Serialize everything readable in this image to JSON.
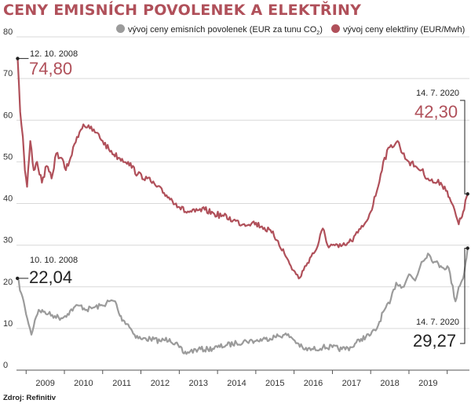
{
  "title": "CENY EMISNÍCH POVOLENEK A ELEKTŘINY",
  "source": "Zdroj: Refinitiv",
  "colors": {
    "emissions": "#9b9b9b",
    "electricity": "#b0505a",
    "title": "#b0505a"
  },
  "chart_data": {
    "type": "line",
    "title": "CENY EMISNÍCH POVOLENEK A ELEKTŘINY",
    "ylim": [
      0,
      80
    ],
    "yticks": [
      0,
      10,
      20,
      30,
      40,
      50,
      60,
      70,
      80
    ],
    "xlim": [
      "2008-10-01",
      "2020-07-31"
    ],
    "xticks": [
      "2009",
      "2010",
      "2011",
      "2012",
      "2013",
      "2014",
      "2015",
      "2016",
      "2017",
      "2018",
      "2019"
    ],
    "grid": true,
    "legend_position": "top",
    "series": [
      {
        "key": "emissions",
        "name": "vývoj ceny emisních povolenek (EUR za tunu CO₂)",
        "legend_main": "vývoj ceny emisních povolenek (EUR za tunu CO",
        "legend_sub": "2",
        "legend_end": ")",
        "color": "#9b9b9b",
        "x": [
          "2008-10-10",
          "2008-11-15",
          "2008-12-20",
          "2009-01-25",
          "2009-02-20",
          "2009-03-25",
          "2009-05-01",
          "2009-06-15",
          "2009-08-01",
          "2009-10-01",
          "2009-12-01",
          "2010-02-01",
          "2010-04-01",
          "2010-06-01",
          "2010-08-01",
          "2010-10-01",
          "2011-01-01",
          "2011-03-01",
          "2011-05-01",
          "2011-06-15",
          "2011-07-15",
          "2011-09-01",
          "2011-11-01",
          "2012-01-01",
          "2012-04-01",
          "2012-07-01",
          "2012-10-01",
          "2013-01-01",
          "2013-02-15",
          "2013-04-15",
          "2013-07-01",
          "2013-10-01",
          "2014-01-01",
          "2014-04-01",
          "2014-07-01",
          "2014-10-01",
          "2015-01-01",
          "2015-04-01",
          "2015-07-01",
          "2015-10-01",
          "2015-12-01",
          "2016-02-01",
          "2016-04-01",
          "2016-07-01",
          "2016-10-01",
          "2017-01-01",
          "2017-04-01",
          "2017-07-01",
          "2017-10-01",
          "2018-01-01",
          "2018-03-01",
          "2018-05-01",
          "2018-07-01",
          "2018-09-01",
          "2018-11-01",
          "2019-01-01",
          "2019-03-01",
          "2019-05-01",
          "2019-07-01",
          "2019-09-01",
          "2019-11-01",
          "2020-01-15",
          "2020-03-20",
          "2020-04-20",
          "2020-06-01",
          "2020-07-14"
        ],
        "values": [
          22.04,
          18.5,
          15.0,
          11.0,
          8.5,
          12.0,
          14.5,
          14.0,
          13.5,
          13.0,
          12.5,
          13.5,
          15.0,
          15.5,
          14.5,
          15.0,
          15.5,
          16.5,
          16.5,
          13.0,
          12.0,
          11.0,
          8.5,
          7.5,
          7.5,
          7.0,
          7.5,
          5.5,
          4.0,
          4.5,
          5.0,
          5.0,
          5.5,
          6.0,
          6.5,
          7.0,
          7.0,
          7.5,
          8.0,
          8.5,
          8.0,
          6.5,
          5.0,
          5.0,
          5.5,
          5.5,
          5.0,
          5.5,
          7.5,
          8.5,
          10.0,
          14.0,
          16.0,
          21.0,
          20.0,
          23.0,
          21.5,
          26.0,
          28.0,
          26.0,
          25.0,
          24.5,
          16.5,
          20.0,
          22.0,
          29.27
        ]
      },
      {
        "key": "electricity",
        "name": "vývoj ceny elektřiny (EUR/Mwh)",
        "legend_main": "vývoj ceny elektřiny (EUR/Mwh)",
        "legend_sub": "",
        "legend_end": "",
        "color": "#b0505a",
        "x": [
          "2008-10-12",
          "2008-11-05",
          "2008-12-01",
          "2008-12-20",
          "2009-01-10",
          "2009-02-10",
          "2009-03-15",
          "2009-04-15",
          "2009-06-01",
          "2009-07-15",
          "2009-09-01",
          "2009-10-15",
          "2009-12-01",
          "2010-01-15",
          "2010-03-01",
          "2010-05-01",
          "2010-07-01",
          "2010-09-01",
          "2010-11-01",
          "2011-01-01",
          "2011-03-01",
          "2011-06-01",
          "2011-09-01",
          "2011-12-01",
          "2012-03-01",
          "2012-06-01",
          "2012-09-01",
          "2012-12-01",
          "2013-03-01",
          "2013-06-01",
          "2013-09-01",
          "2013-12-01",
          "2014-03-01",
          "2014-06-01",
          "2014-09-01",
          "2014-12-01",
          "2015-03-01",
          "2015-06-01",
          "2015-08-01",
          "2015-10-01",
          "2015-12-01",
          "2016-02-15",
          "2016-04-01",
          "2016-06-01",
          "2016-08-01",
          "2016-10-01",
          "2016-11-15",
          "2017-01-01",
          "2017-03-01",
          "2017-05-01",
          "2017-07-01",
          "2017-09-01",
          "2017-11-01",
          "2018-01-01",
          "2018-03-01",
          "2018-05-01",
          "2018-07-01",
          "2018-09-15",
          "2018-11-01",
          "2019-01-01",
          "2019-03-01",
          "2019-05-01",
          "2019-07-01",
          "2019-09-01",
          "2019-11-01",
          "2020-01-01",
          "2020-02-15",
          "2020-04-20",
          "2020-06-01",
          "2020-07-14"
        ],
        "values": [
          74.8,
          62.0,
          56.0,
          48.0,
          44.0,
          55.0,
          48.0,
          50.0,
          45.0,
          49.0,
          46.0,
          52.0,
          51.0,
          48.0,
          51.0,
          56.0,
          59.0,
          58.0,
          57.0,
          55.0,
          53.0,
          51.0,
          50.0,
          47.0,
          46.0,
          44.0,
          42.0,
          40.0,
          38.0,
          38.0,
          38.5,
          37.5,
          37.0,
          36.0,
          35.0,
          35.5,
          34.5,
          33.0,
          31.0,
          28.0,
          25.0,
          22.0,
          24.0,
          27.0,
          29.0,
          34.0,
          30.0,
          30.0,
          29.5,
          30.0,
          31.0,
          33.0,
          35.0,
          38.0,
          43.0,
          50.0,
          53.5,
          55.0,
          52.0,
          50.0,
          49.0,
          48.0,
          46.0,
          45.0,
          45.0,
          43.0,
          40.0,
          35.0,
          38.0,
          42.3
        ]
      }
    ],
    "annotations": [
      {
        "series": "electricity",
        "date_label": "12. 10. 2008",
        "value_label": "74,80"
      },
      {
        "series": "electricity",
        "date_label": "14. 7. 2020",
        "value_label": "42,30"
      },
      {
        "series": "emissions",
        "date_label": "10. 10. 2008",
        "value_label": "22,04"
      },
      {
        "series": "emissions",
        "date_label": "14. 7. 2020",
        "value_label": "29,27"
      }
    ]
  }
}
